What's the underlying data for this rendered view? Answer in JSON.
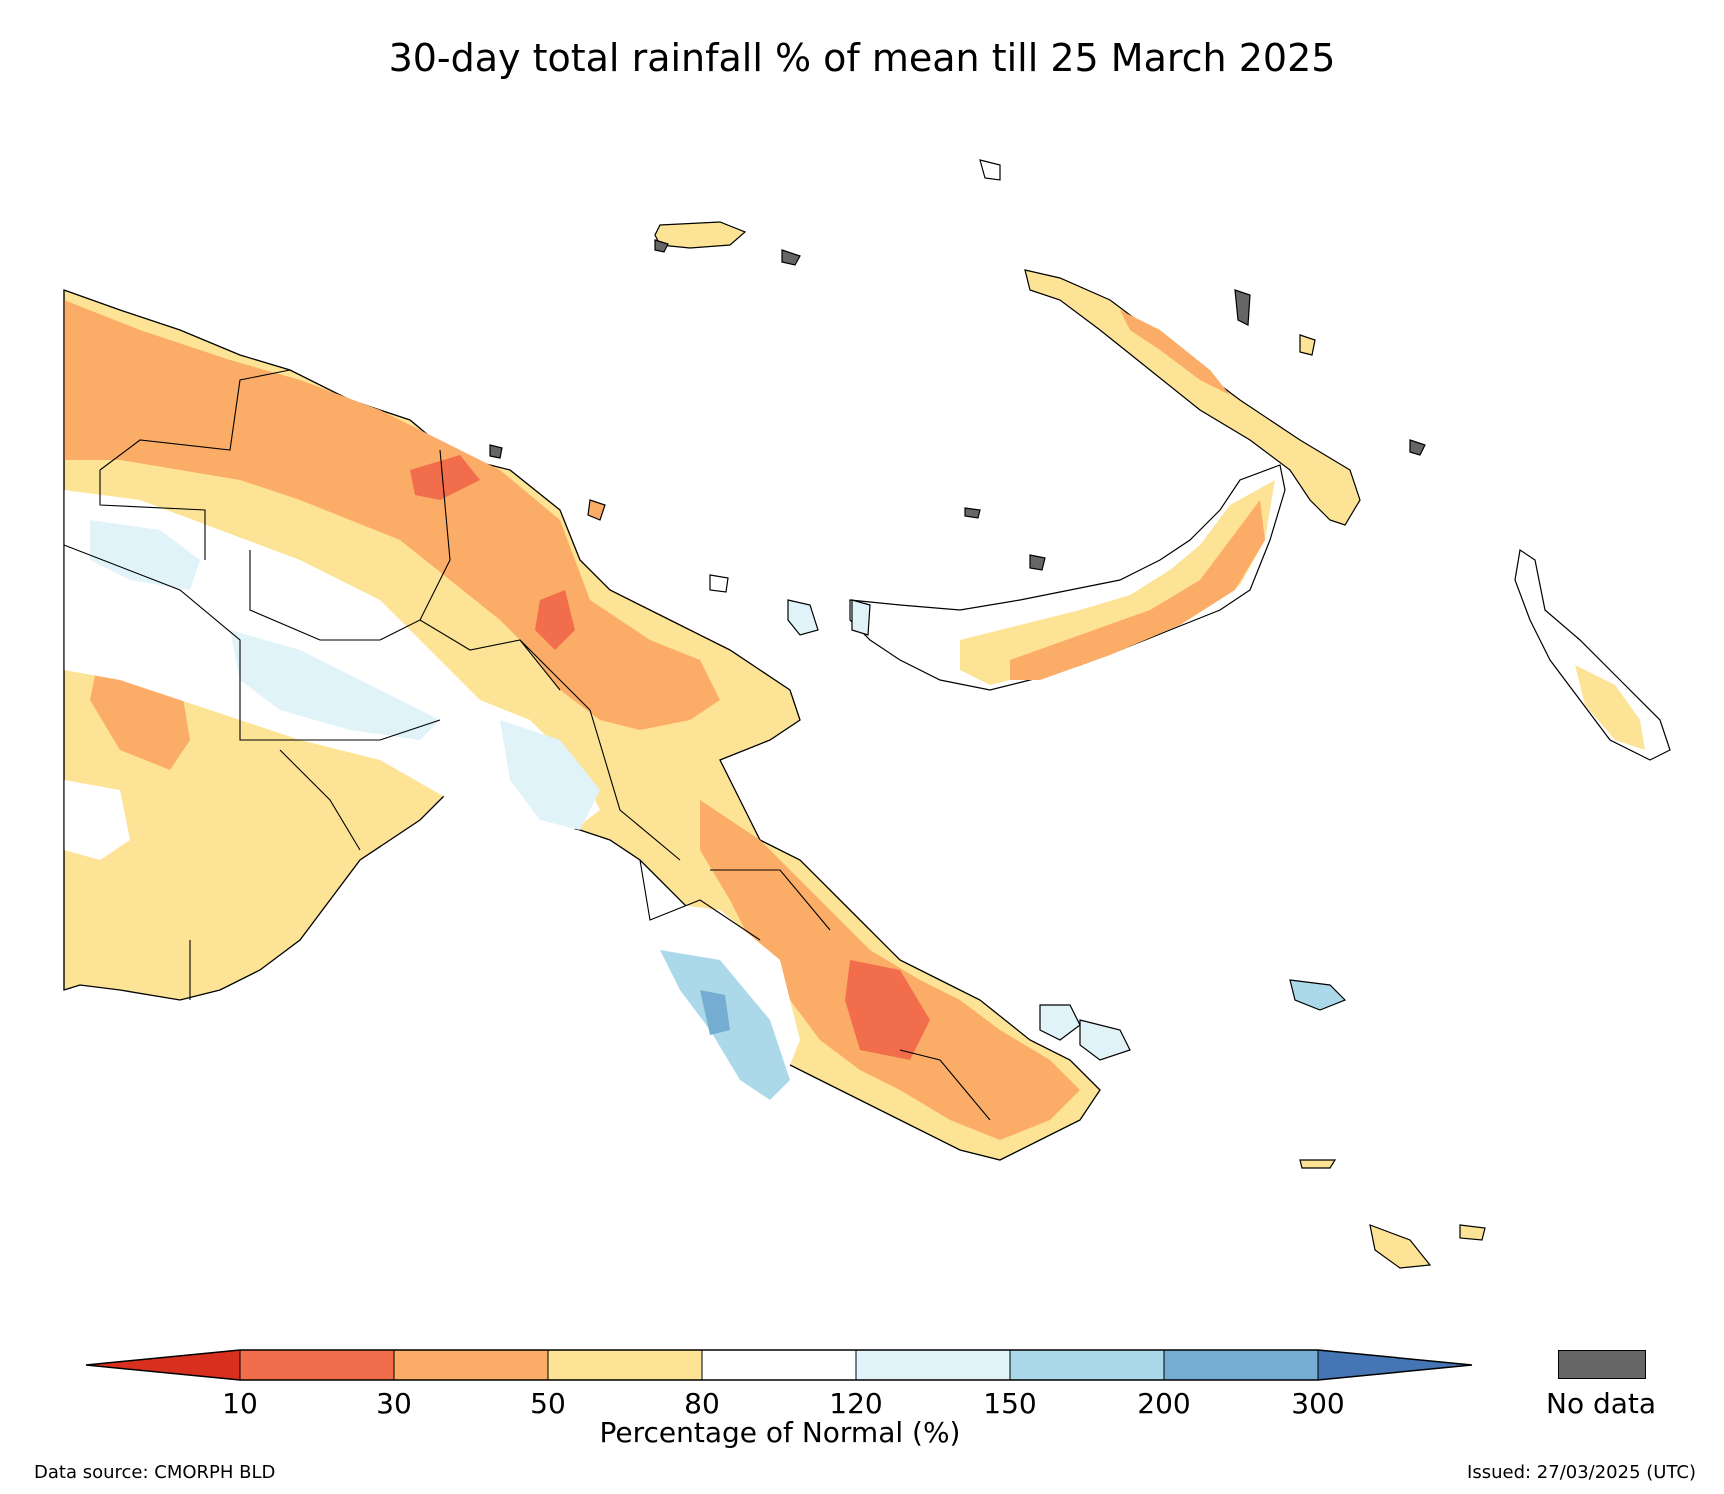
{
  "title": "30-day total rainfall % of mean till 25 March 2025",
  "colorbar": {
    "label": "Percentage of Normal (%)",
    "ticks": [
      "10",
      "30",
      "50",
      "80",
      "120",
      "150",
      "200",
      "300"
    ],
    "bins": [
      {
        "color": "#d7301f"
      },
      {
        "color": "#f26d4b"
      },
      {
        "color": "#fbad68"
      },
      {
        "color": "#fde395"
      },
      {
        "color": "#ffffff"
      },
      {
        "color": "#e0f3f8"
      },
      {
        "color": "#abd9e9"
      },
      {
        "color": "#74add1"
      },
      {
        "color": "#4575b4"
      }
    ]
  },
  "legend": {
    "nodata_label": "No data",
    "nodata_color": "#666666"
  },
  "footer": {
    "data_source": "Data source: CMORPH BLD",
    "issued": "Issued: 27/03/2025 (UTC)"
  }
}
